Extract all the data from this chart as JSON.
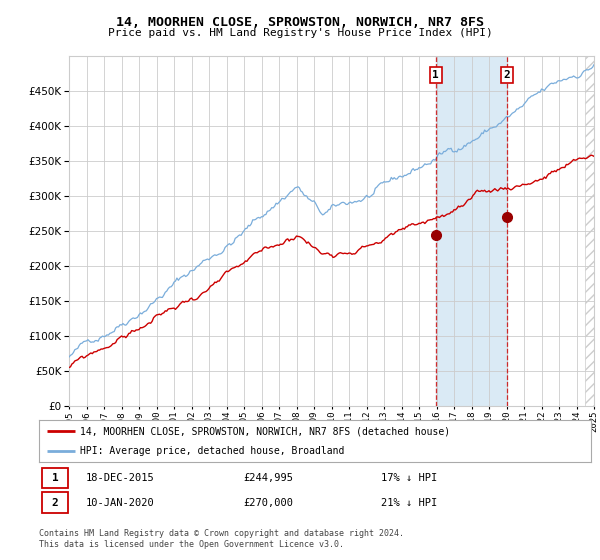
{
  "title": "14, MOORHEN CLOSE, SPROWSTON, NORWICH, NR7 8FS",
  "subtitle": "Price paid vs. HM Land Registry's House Price Index (HPI)",
  "legend_line1": "14, MOORHEN CLOSE, SPROWSTON, NORWICH, NR7 8FS (detached house)",
  "legend_line2": "HPI: Average price, detached house, Broadland",
  "marker1_date": "18-DEC-2015",
  "marker1_price": 244995,
  "marker1_label": "17% ↓ HPI",
  "marker2_date": "10-JAN-2020",
  "marker2_price": 270000,
  "marker2_label": "21% ↓ HPI",
  "footer": "Contains HM Land Registry data © Crown copyright and database right 2024.\nThis data is licensed under the Open Government Licence v3.0.",
  "hpi_color": "#7aaddb",
  "price_color": "#cc0000",
  "bg_color": "#ffffff",
  "grid_color": "#cccccc",
  "shade_color": "#daeaf5",
  "marker_color": "#990000",
  "dashed_line_color": "#cc0000",
  "x_start_year": 1995,
  "x_end_year": 2025,
  "y_min": 0,
  "y_max": 500000,
  "y_ticks": [
    0,
    50000,
    100000,
    150000,
    200000,
    250000,
    300000,
    350000,
    400000,
    450000
  ],
  "marker1_x": 2015.96,
  "marker2_x": 2020.03
}
